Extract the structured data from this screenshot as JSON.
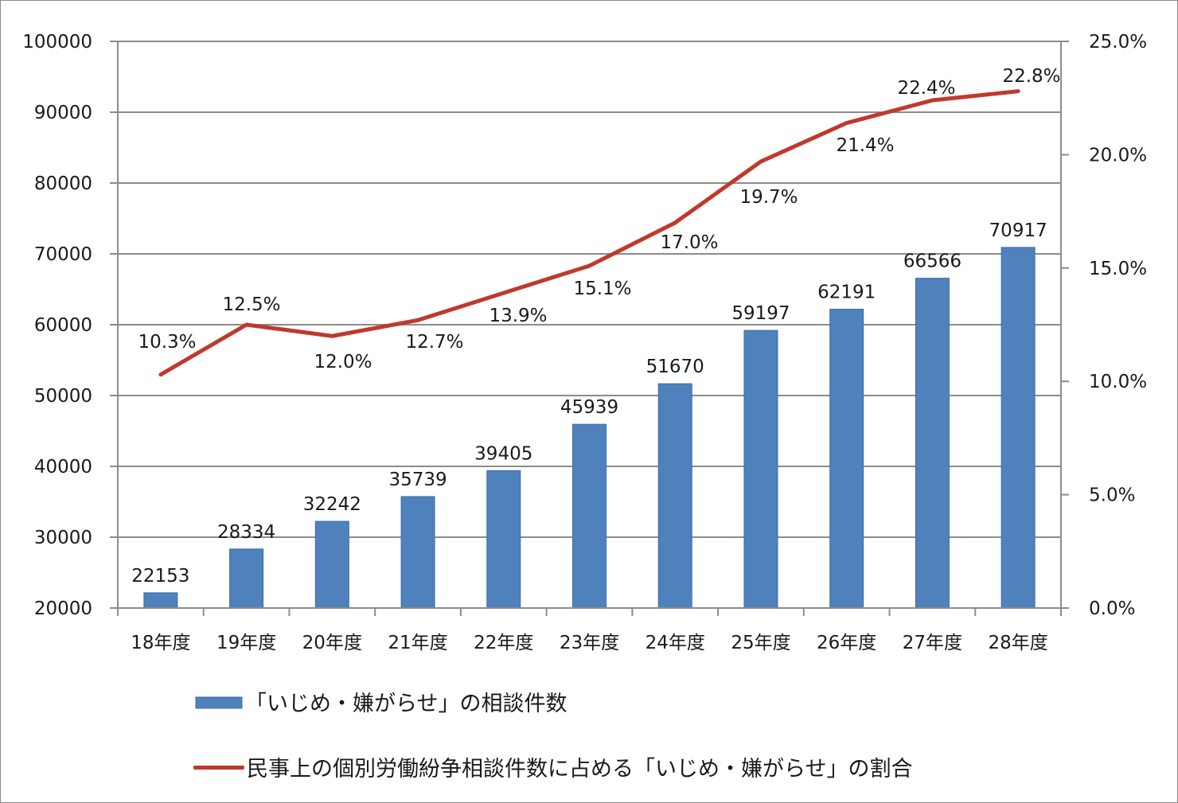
{
  "chart_data": {
    "type": "bar+line",
    "title": "",
    "categories": [
      "18年度",
      "19年度",
      "20年度",
      "21年度",
      "22年度",
      "23年度",
      "24年度",
      "25年度",
      "26年度",
      "27年度",
      "28年度"
    ],
    "series": [
      {
        "name": "「いじめ・嫌がらせ」の相談件数",
        "type": "bar",
        "axis": "left",
        "color": "#4f81bd",
        "values": [
          22153,
          28334,
          32242,
          35739,
          39405,
          45939,
          51670,
          59197,
          62191,
          66566,
          70917
        ],
        "labels": [
          "22153",
          "28334",
          "32242",
          "35739",
          "39405",
          "45939",
          "51670",
          "59197",
          "62191",
          "66566",
          "70917"
        ]
      },
      {
        "name": "民事上の個別労働紛争相談件数に占める「いじめ・嫌がらせ」の割合",
        "type": "line",
        "axis": "right",
        "color": "#c0392b",
        "values": [
          10.3,
          12.5,
          12.0,
          12.7,
          13.9,
          15.1,
          17.0,
          19.7,
          21.4,
          22.4,
          22.8
        ],
        "labels": [
          "10.3%",
          "12.5%",
          "12.0%",
          "12.7%",
          "13.9%",
          "15.1%",
          "17.0%",
          "19.7%",
          "21.4%",
          "22.4%",
          "22.8%"
        ]
      }
    ],
    "y_left": {
      "min": 20000,
      "max": 100000,
      "step": 10000,
      "ticks": [
        "100000",
        "90000",
        "80000",
        "70000",
        "60000",
        "50000",
        "40000",
        "30000",
        "20000"
      ]
    },
    "y_right": {
      "min": 0,
      "max": 25,
      "step": 5,
      "ticks": [
        "25.0%",
        "20.0%",
        "15.0%",
        "10.0%",
        "5.0%",
        "0.0%"
      ]
    },
    "xlabel": "",
    "ylabel": "",
    "grid": true,
    "legend_position": "bottom"
  },
  "legend": {
    "bar_label": "「いじめ・嫌がらせ」の相談件数",
    "line_label": "民事上の個別労働紛争相談件数に占める「いじめ・嫌がらせ」の割合"
  }
}
